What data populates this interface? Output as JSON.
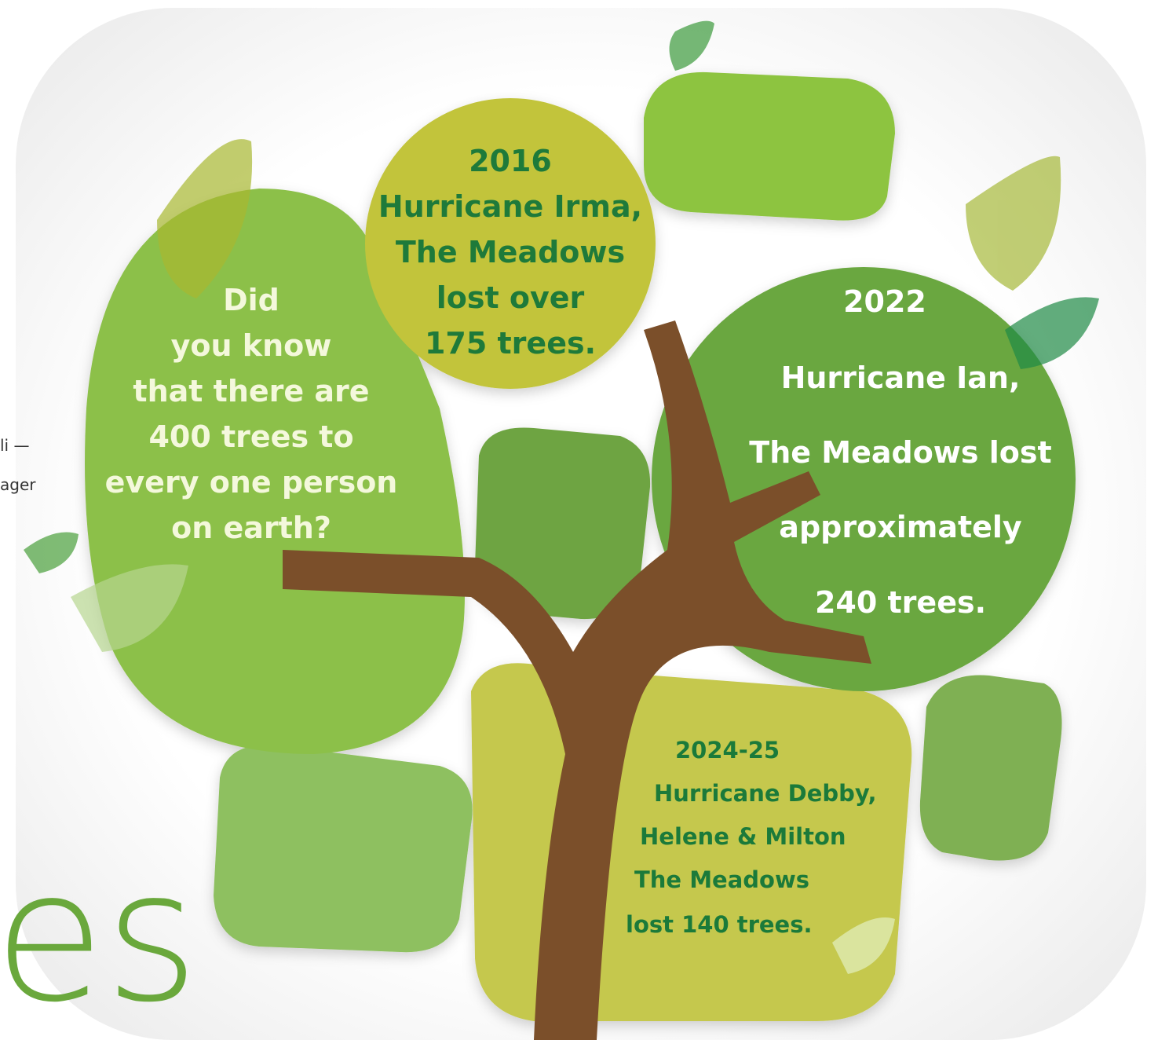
{
  "side_text": {
    "line1": "li —",
    "line2": "ager",
    "big": "es"
  },
  "bubbles": [
    {
      "lines": [
        "Did",
        "you know",
        "that there are",
        "400 trees to",
        "every one person",
        "on earth?"
      ]
    },
    {
      "lines": [
        "2016",
        "Hurricane Irma,",
        "The Meadows",
        "lost over",
        "175 trees."
      ]
    },
    {
      "lines": [
        "2022",
        "Hurricane Ian,",
        "The Meadows lost",
        "approximately",
        "240 trees."
      ]
    },
    {
      "lines": [
        "2024-25",
        "Hurricane Debby,",
        "Helene & Milton",
        "The Meadows",
        "lost 140 trees."
      ]
    }
  ]
}
